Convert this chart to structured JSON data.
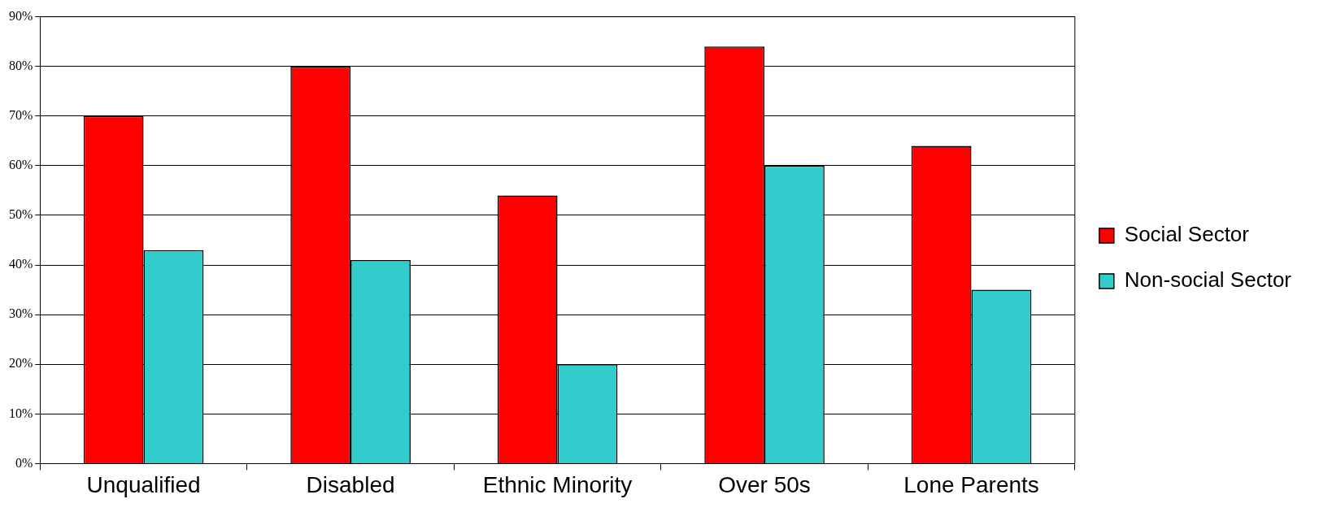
{
  "chart_data": {
    "type": "bar",
    "categories": [
      "Unqualified",
      "Disabled",
      "Ethnic Minority",
      "Over 50s",
      "Lone Parents"
    ],
    "series": [
      {
        "name": "Social Sector",
        "color": "#ff0000",
        "values": [
          70,
          80,
          54,
          84,
          64
        ]
      },
      {
        "name": "Non-social Sector",
        "color": "#33cccc",
        "values": [
          43,
          41,
          20,
          60,
          35
        ]
      }
    ],
    "ylim": [
      0,
      90
    ],
    "yticks": [
      {
        "value": 0,
        "label": "0%"
      },
      {
        "value": 10,
        "label": "10%"
      },
      {
        "value": 20,
        "label": "20%"
      },
      {
        "value": 30,
        "label": "30%"
      },
      {
        "value": 40,
        "label": "40%"
      },
      {
        "value": 50,
        "label": "50%"
      },
      {
        "value": 60,
        "label": "60%"
      },
      {
        "value": 70,
        "label": "70%"
      },
      {
        "value": 80,
        "label": "80%"
      },
      {
        "value": 90,
        "label": "90%"
      }
    ],
    "grid": "y",
    "legend": "right"
  }
}
